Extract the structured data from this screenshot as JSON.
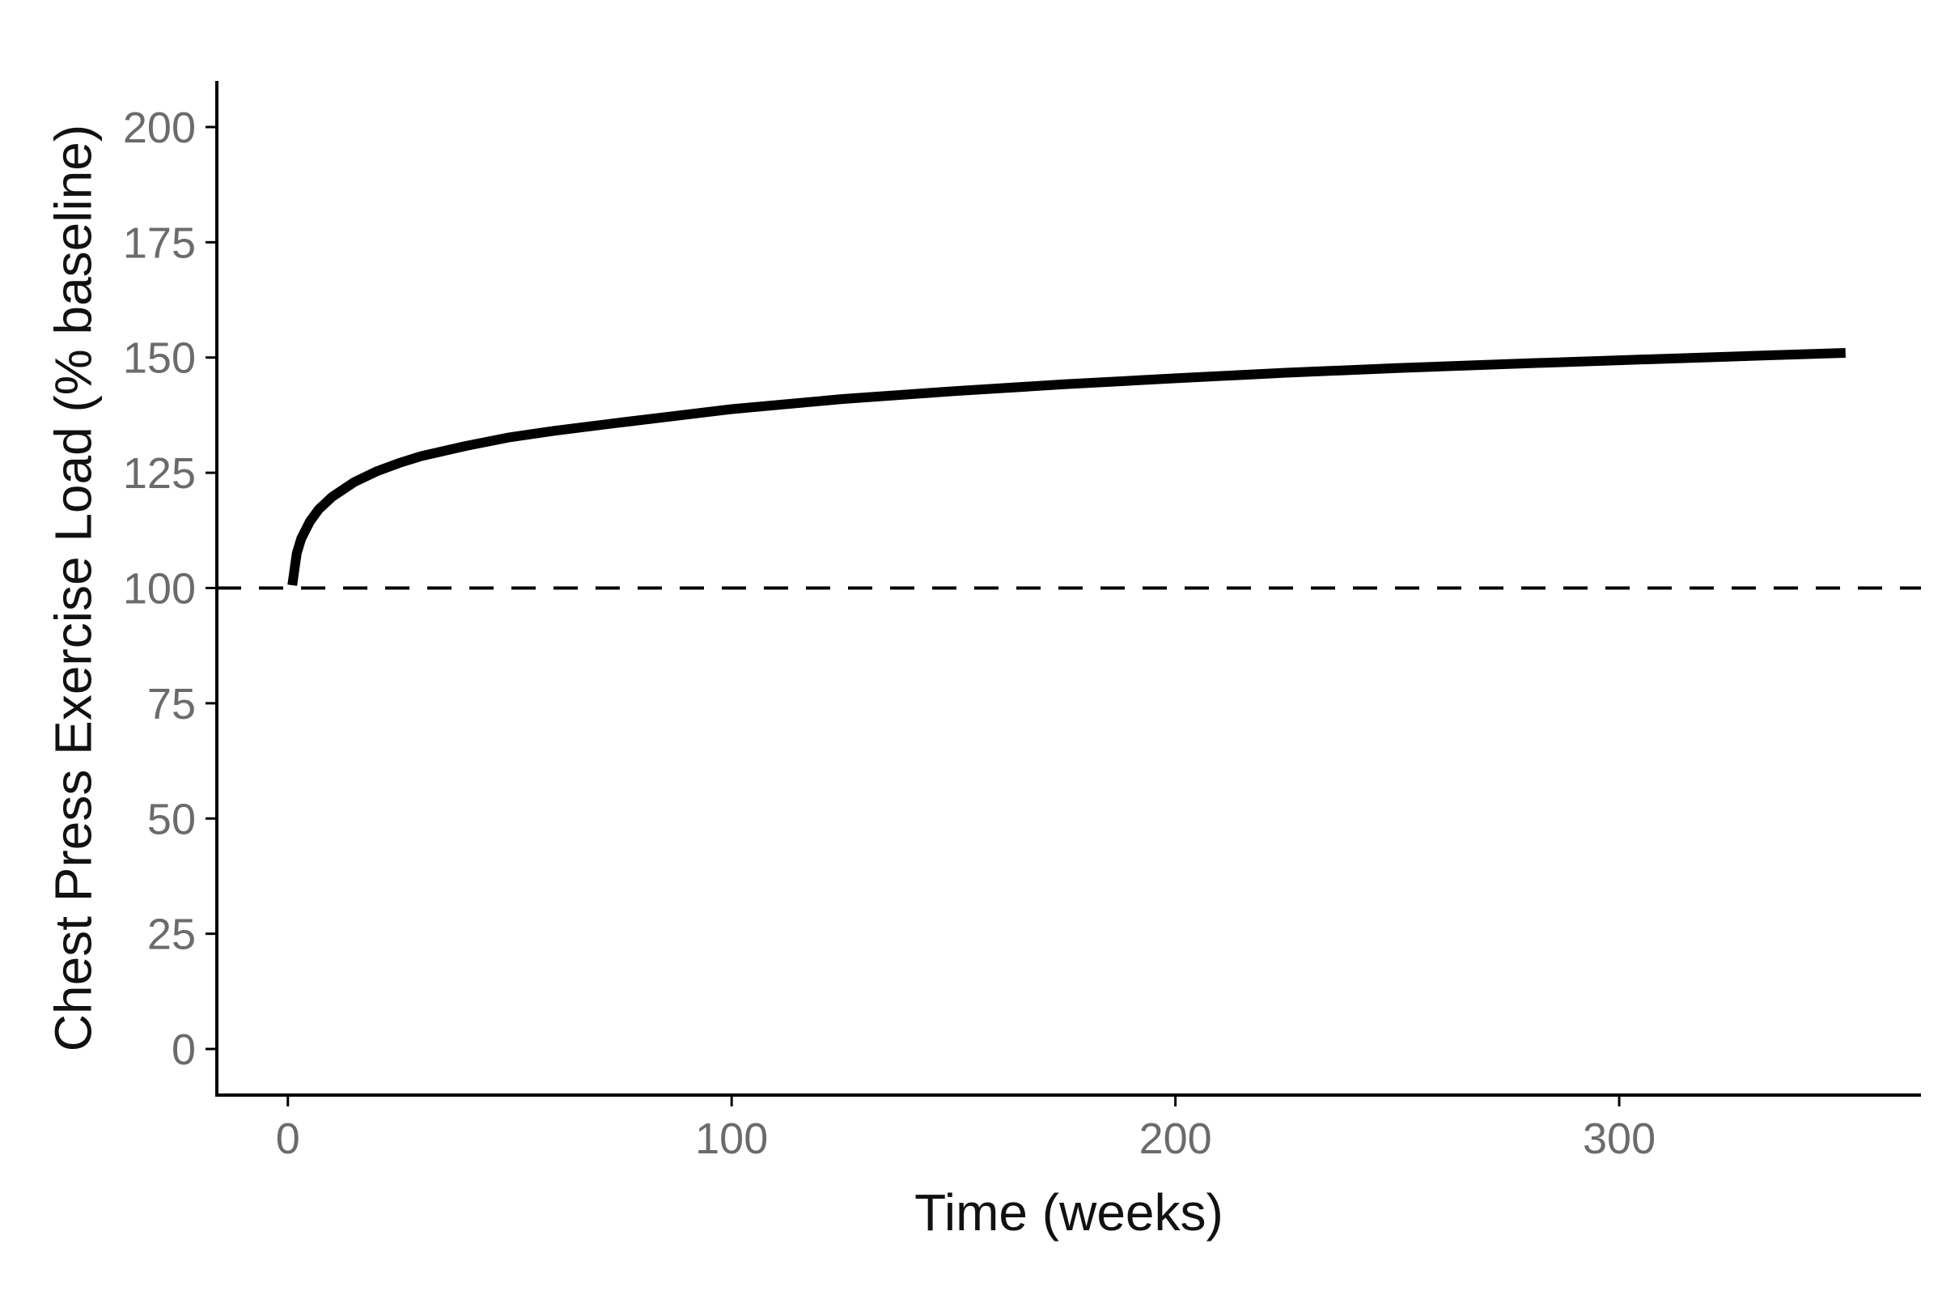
{
  "chart_data": {
    "type": "line",
    "title": "",
    "xlabel": "Time (weeks)",
    "ylabel": "Chest Press Exercise Load (% baseline)",
    "xlim": [
      -16,
      368
    ],
    "ylim": [
      -10,
      210
    ],
    "x_ticks": [
      0,
      100,
      200,
      300
    ],
    "y_ticks": [
      0,
      25,
      50,
      75,
      100,
      125,
      150,
      175,
      200
    ],
    "grid": false,
    "legend": "none",
    "line_color": "#000000",
    "series": [
      {
        "x": [
          1,
          2,
          3,
          5,
          7,
          10,
          15,
          20,
          25,
          30,
          40,
          50,
          60,
          75,
          100,
          125,
          150,
          175,
          200,
          225,
          250,
          275,
          300,
          325,
          351
        ],
        "values": [
          100.6,
          107.5,
          110.7,
          114.5,
          117.1,
          119.8,
          123.0,
          125.3,
          127.1,
          128.6,
          130.8,
          132.7,
          134.1,
          135.9,
          138.8,
          141.0,
          142.7,
          144.2,
          145.5,
          146.7,
          147.7,
          148.6,
          149.4,
          150.2,
          151.0
        ]
      }
    ],
    "reference_lines": [
      {
        "axis": "y",
        "value": 100,
        "style": "dashed"
      }
    ]
  }
}
